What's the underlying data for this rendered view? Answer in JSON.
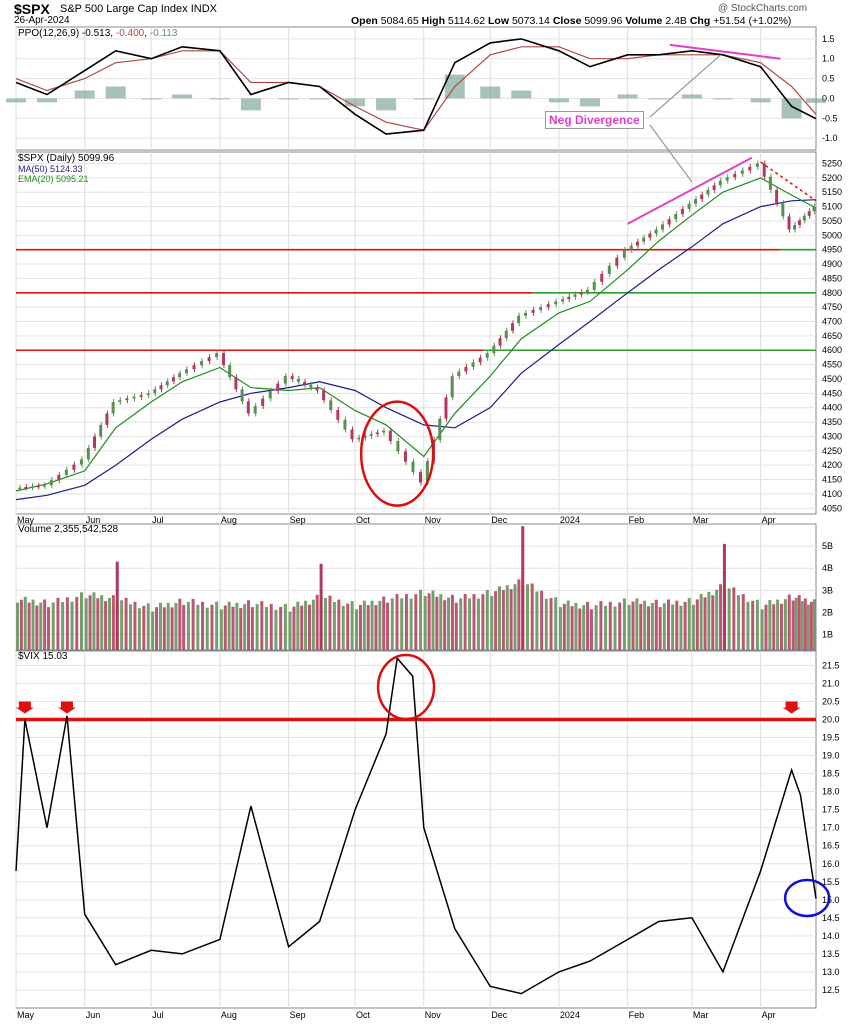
{
  "header": {
    "symbol": "$SPX",
    "name": "S&P 500 Large Cap Index",
    "exchange": "INDX",
    "date": "26-Apr-2024",
    "watermark": "@ StockCharts.com",
    "open_label": "Open",
    "open": "5084.65",
    "high_label": "High",
    "high": "5114.62",
    "low_label": "Low",
    "low": "5073.14",
    "close_label": "Close",
    "close": "5099.96",
    "volume_label": "Volume",
    "volume": "2.4B",
    "chg_label": "Chg",
    "chg": "+51.54 (+1.02%)"
  },
  "colors": {
    "up": "#5b8f52",
    "down": "#b03a5b",
    "ma50": "#1c1c8c",
    "ema20": "#1f8c1f",
    "red_line": "#e01010",
    "green_line": "#2a9d2a",
    "ppo": "#000000",
    "ppo_signal": "#b04848",
    "hist": "#5e9180",
    "divergence": "#e040c8",
    "vix_circle": "#1010d0"
  },
  "chart_data": [
    {
      "type": "line",
      "panel": "PPO",
      "title": "PPO(12,26,9) -0.513, -0.400, -0.113",
      "legend": {
        "label": "PPO(12,26,9)",
        "v1": "-0.513",
        "v2": "-0.400",
        "v3": "-0.113"
      },
      "ylim": [
        -1.3,
        1.8
      ],
      "yticks": [
        "1.5",
        "1.0",
        "0.5",
        "0.0",
        "-0.5",
        "-1.0"
      ],
      "ytick_values": [
        1.5,
        1.0,
        0.5,
        0.0,
        -0.5,
        -1.0
      ],
      "x": [
        "2023-05-01",
        "2023-05-15",
        "2023-06-01",
        "2023-06-15",
        "2023-07-01",
        "2023-07-15",
        "2023-08-01",
        "2023-08-15",
        "2023-09-01",
        "2023-09-15",
        "2023-10-01",
        "2023-10-15",
        "2023-11-01",
        "2023-11-15",
        "2023-12-01",
        "2023-12-15",
        "2024-01-01",
        "2024-01-15",
        "2024-02-01",
        "2024-02-15",
        "2024-03-01",
        "2024-03-15",
        "2024-04-01",
        "2024-04-15",
        "2024-04-26"
      ],
      "series": [
        {
          "name": "PPO",
          "values": [
            0.4,
            0.1,
            0.7,
            1.2,
            1.0,
            1.3,
            1.2,
            0.1,
            0.4,
            0.3,
            -0.4,
            -0.9,
            -0.8,
            0.9,
            1.4,
            1.5,
            1.2,
            0.8,
            1.1,
            1.1,
            1.2,
            1.1,
            0.8,
            -0.2,
            -0.51
          ]
        },
        {
          "name": "Signal",
          "values": [
            0.5,
            0.2,
            0.5,
            0.9,
            1.0,
            1.2,
            1.2,
            0.4,
            0.4,
            0.3,
            -0.2,
            -0.6,
            -0.8,
            0.3,
            1.1,
            1.3,
            1.3,
            1.0,
            1.0,
            1.1,
            1.1,
            1.1,
            0.9,
            0.3,
            -0.4
          ]
        },
        {
          "name": "Histogram",
          "values": [
            -0.1,
            -0.1,
            0.2,
            0.3,
            0.0,
            0.1,
            0.0,
            -0.3,
            0.0,
            0.0,
            -0.2,
            -0.3,
            0.0,
            0.6,
            0.3,
            0.2,
            -0.1,
            -0.2,
            0.1,
            0.0,
            0.1,
            0.0,
            -0.1,
            -0.5,
            -0.11
          ]
        }
      ],
      "annotations": [
        {
          "text": "Neg Divergence"
        }
      ]
    },
    {
      "type": "line",
      "panel": "Price",
      "legend": [
        {
          "label": "$SPX (Daily)",
          "value": "5099.96"
        },
        {
          "label": "MA(50)",
          "value": "5124.33"
        },
        {
          "label": "EMA(20)",
          "value": "5095.21"
        }
      ],
      "ylim": [
        4030,
        5290
      ],
      "yticks": [
        "5250",
        "5200",
        "5150",
        "5100",
        "5050",
        "5000",
        "4950",
        "4900",
        "4850",
        "4800",
        "4750",
        "4700",
        "4650",
        "4600",
        "4550",
        "4500",
        "4450",
        "4400",
        "4350",
        "4300",
        "4250",
        "4200",
        "4150",
        "4100",
        "4050"
      ],
      "ytick_values": [
        5250,
        5200,
        5150,
        5100,
        5050,
        5000,
        4950,
        4900,
        4850,
        4800,
        4750,
        4700,
        4650,
        4600,
        4550,
        4500,
        4450,
        4400,
        4350,
        4300,
        4250,
        4200,
        4150,
        4100,
        4050
      ],
      "xticks": [
        "May",
        "Jun",
        "Jul",
        "Aug",
        "Sep",
        "Oct",
        "Nov",
        "Dec",
        "2024",
        "Feb",
        "Mar",
        "Apr"
      ],
      "x": [
        "2023-05-01",
        "2023-05-15",
        "2023-06-01",
        "2023-06-15",
        "2023-07-01",
        "2023-07-15",
        "2023-08-01",
        "2023-08-15",
        "2023-09-01",
        "2023-09-15",
        "2023-10-01",
        "2023-10-15",
        "2023-11-01",
        "2023-11-15",
        "2023-12-01",
        "2023-12-15",
        "2024-01-01",
        "2024-01-15",
        "2024-02-01",
        "2024-02-15",
        "2024-03-01",
        "2024-03-15",
        "2024-04-01",
        "2024-04-15",
        "2024-04-26"
      ],
      "series": [
        {
          "name": "$SPX",
          "values": [
            4120,
            4130,
            4220,
            4420,
            4450,
            4520,
            4590,
            4380,
            4510,
            4460,
            4290,
            4320,
            4140,
            4510,
            4590,
            4720,
            4770,
            4810,
            4950,
            5020,
            5110,
            5190,
            5250,
            5020,
            5100
          ]
        },
        {
          "name": "MA(50)",
          "values": [
            4080,
            4095,
            4130,
            4200,
            4290,
            4360,
            4420,
            4450,
            4470,
            4490,
            4460,
            4400,
            4340,
            4330,
            4400,
            4520,
            4620,
            4700,
            4800,
            4880,
            4960,
            5040,
            5100,
            5120,
            5124
          ]
        },
        {
          "name": "EMA(20)",
          "values": [
            4110,
            4135,
            4180,
            4330,
            4420,
            4490,
            4540,
            4470,
            4460,
            4470,
            4390,
            4340,
            4230,
            4380,
            4510,
            4640,
            4730,
            4770,
            4880,
            4980,
            5070,
            5150,
            5200,
            5140,
            5095
          ]
        }
      ],
      "horizontal_lines": [
        4950,
        4800,
        4600
      ]
    },
    {
      "type": "bar",
      "panel": "Volume",
      "legend": {
        "label": "Volume",
        "value": "2,355,542,528"
      },
      "ylim": [
        0.3,
        6.0
      ],
      "yticks": [
        "5B",
        "4B",
        "3B",
        "2B",
        "1B"
      ],
      "ytick_values": [
        5,
        4,
        3,
        2,
        1
      ],
      "x": [
        "2023-05-01",
        "2023-05-15",
        "2023-06-01",
        "2023-06-15",
        "2023-07-01",
        "2023-07-15",
        "2023-08-01",
        "2023-08-15",
        "2023-09-01",
        "2023-09-15",
        "2023-10-01",
        "2023-10-15",
        "2023-11-01",
        "2023-11-15",
        "2023-12-01",
        "2023-12-15",
        "2024-01-01",
        "2024-01-15",
        "2024-02-01",
        "2024-02-15",
        "2024-03-01",
        "2024-03-15",
        "2024-04-01",
        "2024-04-15",
        "2024-04-26"
      ],
      "values": [
        2.6,
        2.4,
        2.8,
        2.6,
        2.2,
        2.5,
        2.3,
        2.4,
        2.2,
        2.7,
        2.3,
        2.6,
        2.9,
        2.6,
        2.9,
        3.4,
        2.4,
        2.3,
        2.5,
        2.4,
        2.5,
        3.2,
        2.3,
        2.7,
        2.4
      ],
      "spikes": [
        {
          "x": "2023-06-15",
          "value": 4.3
        },
        {
          "x": "2023-09-15",
          "value": 4.2
        },
        {
          "x": "2023-12-15",
          "value": 5.9
        },
        {
          "x": "2024-03-15",
          "value": 5.1
        }
      ]
    },
    {
      "type": "line",
      "panel": "VIX",
      "legend": {
        "label": "$VIX",
        "value": "15.03"
      },
      "ylim": [
        12.0,
        21.9
      ],
      "yticks": [
        "21.5",
        "21.0",
        "20.5",
        "20.0",
        "19.5",
        "19.0",
        "18.5",
        "18.0",
        "17.5",
        "17.0",
        "16.5",
        "16.0",
        "15.5",
        "15.0",
        "14.5",
        "14.0",
        "13.5",
        "13.0",
        "12.5"
      ],
      "ytick_values": [
        21.5,
        21.0,
        20.5,
        20.0,
        19.5,
        19.0,
        18.5,
        18.0,
        17.5,
        17.0,
        16.5,
        16.0,
        15.5,
        15.0,
        14.5,
        14.0,
        13.5,
        13.0,
        12.5
      ],
      "xticks": [
        "May",
        "Jun",
        "Jul",
        "Aug",
        "Sep",
        "Oct",
        "Nov",
        "Dec",
        "2024",
        "Feb",
        "Mar",
        "Apr"
      ],
      "x": [
        "2023-05-01",
        "2023-05-05",
        "2023-05-15",
        "2023-05-24",
        "2023-06-01",
        "2023-06-15",
        "2023-07-01",
        "2023-07-15",
        "2023-08-01",
        "2023-08-15",
        "2023-09-01",
        "2023-09-15",
        "2023-10-01",
        "2023-10-15",
        "2023-10-20",
        "2023-10-27",
        "2023-11-01",
        "2023-11-15",
        "2023-12-01",
        "2023-12-15",
        "2024-01-01",
        "2024-01-15",
        "2024-02-01",
        "2024-02-15",
        "2024-03-01",
        "2024-03-15",
        "2024-04-01",
        "2024-04-15",
        "2024-04-19",
        "2024-04-26"
      ],
      "values": [
        15.8,
        20.0,
        17.0,
        20.1,
        14.6,
        13.2,
        13.6,
        13.5,
        13.9,
        17.6,
        13.7,
        14.4,
        17.5,
        19.6,
        21.7,
        21.2,
        17.0,
        14.2,
        12.6,
        12.4,
        13.0,
        13.3,
        13.9,
        14.4,
        14.5,
        13.0,
        15.8,
        18.6,
        17.9,
        15.03
      ],
      "horizontal_lines": [
        20.0
      ]
    }
  ]
}
